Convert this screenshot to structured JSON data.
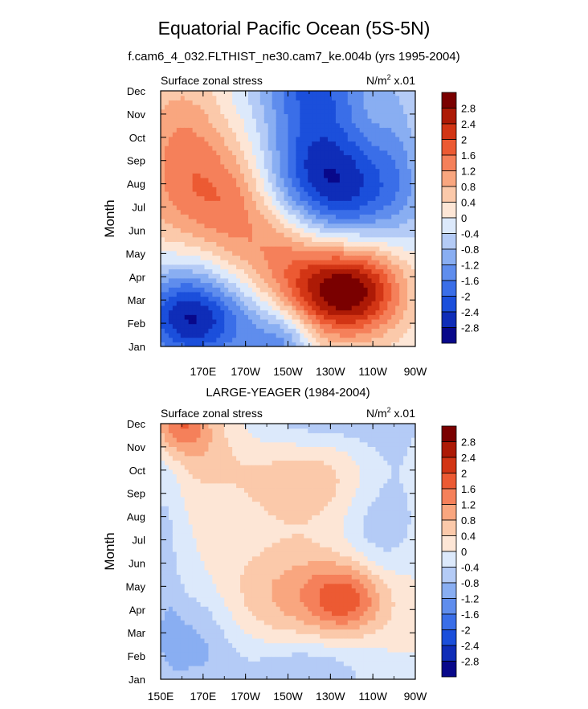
{
  "figure": {
    "title": "Equatorial Pacific Ocean (5S-5N)",
    "subtitle": "f.cam6_4_032.FLTHIST_ne30.cam7_ke.004b (yrs 1995-2004)"
  },
  "colors": {
    "levels": [
      -2.8,
      -2.4,
      -2.0,
      -1.6,
      -1.2,
      -0.8,
      -0.4,
      0,
      0.4,
      0.8,
      1.2,
      1.6,
      2.0,
      2.4,
      2.8
    ],
    "fills": [
      "#08088a",
      "#0f2db8",
      "#1b4fdb",
      "#3a6ee8",
      "#5f8ded",
      "#89aef2",
      "#b4cbf6",
      "#dce9fb",
      "#fde6d6",
      "#fbc9aa",
      "#f9a67f",
      "#f5805a",
      "#ec5a33",
      "#d23515",
      "#ad1a06",
      "#7a0000"
    ]
  },
  "chart_data": [
    {
      "type": "heatmap",
      "title": "",
      "left_string": "Surface zonal stress",
      "right_string": "N/m",
      "right_string_sup": "2",
      "right_string_tail": " x.01",
      "xlabel": "",
      "ylabel": "Month",
      "xlim": [
        150,
        270
      ],
      "xticks": [
        170,
        190,
        210,
        230,
        250,
        270
      ],
      "xticklabels": [
        "170E",
        "170W",
        "150W",
        "130W",
        "110W",
        "90W"
      ],
      "yticklabels": [
        "Jan",
        "Feb",
        "Mar",
        "Apr",
        "May",
        "Jun",
        "Jul",
        "Aug",
        "Sep",
        "Oct",
        "Nov",
        "Dec"
      ],
      "colorbar_labels": [
        "2.8",
        "2.4",
        "2",
        "1.6",
        "1.2",
        "0.8",
        "0.4",
        "0",
        "-0.4",
        "-0.8",
        "-1.2",
        "-1.6",
        "-2",
        "-2.4",
        "-2.8"
      ],
      "features": [
        {
          "lon": 170,
          "month": 1,
          "value": -2.0,
          "wlon": 22,
          "wmon": 1.3
        },
        {
          "lon": 160,
          "month": 2,
          "value": -1.2,
          "wlon": 14,
          "wmon": 1.6
        },
        {
          "lon": 208,
          "month": 0.2,
          "value": -1.2,
          "wlon": 10,
          "wmon": 1.0
        },
        {
          "lon": 160,
          "month": 7,
          "value": 1.0,
          "wlon": 16,
          "wmon": 2.6
        },
        {
          "lon": 185,
          "month": 6.3,
          "value": 1.2,
          "wlon": 14,
          "wmon": 1.8
        },
        {
          "lon": 160,
          "month": 9.5,
          "value": 0.5,
          "wlon": 14,
          "wmon": 2.5
        },
        {
          "lon": 210,
          "month": 4.4,
          "value": 1.4,
          "wlon": 16,
          "wmon": 1.5
        },
        {
          "lon": 232,
          "month": 2.2,
          "value": 2.2,
          "wlon": 20,
          "wmon": 1.3
        },
        {
          "lon": 243,
          "month": 3.1,
          "value": 1.6,
          "wlon": 16,
          "wmon": 1.6
        },
        {
          "lon": 236,
          "month": 6.5,
          "value": -2.4,
          "wlon": 24,
          "wmon": 2.0
        },
        {
          "lon": 222,
          "month": 9.5,
          "value": -1.4,
          "wlon": 17,
          "wmon": 2.4
        },
        {
          "lon": 222,
          "month": 11.3,
          "value": -0.9,
          "wlon": 22,
          "wmon": 1.0
        },
        {
          "lon": 262,
          "month": 9.5,
          "value": -0.5,
          "wlon": 8,
          "wmon": 2.5
        }
      ]
    },
    {
      "type": "heatmap",
      "title": "LARGE-YEAGER (1984-2004)",
      "left_string": "Surface zonal stress",
      "right_string": "N/m",
      "right_string_sup": "2",
      "right_string_tail": " x.01",
      "xlabel": "",
      "ylabel": "Month",
      "xlim": [
        150,
        270
      ],
      "xticks": [
        150,
        170,
        190,
        210,
        230,
        250,
        270
      ],
      "xticklabels": [
        "150E",
        "170E",
        "170W",
        "150W",
        "130W",
        "110W",
        "90W"
      ],
      "yticklabels": [
        "Jan",
        "Feb",
        "Mar",
        "Apr",
        "May",
        "Jun",
        "Jul",
        "Aug",
        "Sep",
        "Oct",
        "Nov",
        "Dec"
      ],
      "colorbar_labels": [
        "2.8",
        "2.4",
        "2",
        "1.6",
        "1.2",
        "0.8",
        "0.4",
        "0",
        "-0.4",
        "-0.8",
        "-1.2",
        "-1.6",
        "-2",
        "-2.4",
        "-2.8"
      ],
      "features": [
        {
          "lon": 158,
          "month": 11,
          "value": 1.4,
          "wlon": 9,
          "wmon": 0.9
        },
        {
          "lon": 170,
          "month": 10.3,
          "value": 0.6,
          "wlon": 12,
          "wmon": 1.5
        },
        {
          "lon": 166,
          "month": 1.6,
          "value": -0.9,
          "wlon": 14,
          "wmon": 1.8
        },
        {
          "lon": 152,
          "month": 5.5,
          "value": -0.5,
          "wlon": 6,
          "wmon": 4.5
        },
        {
          "lon": 220,
          "month": 3.7,
          "value": 1.0,
          "wlon": 28,
          "wmon": 1.5
        },
        {
          "lon": 238,
          "month": 3.5,
          "value": 1.3,
          "wlon": 12,
          "wmon": 1.0
        },
        {
          "lon": 220,
          "month": 8.5,
          "value": 0.7,
          "wlon": 26,
          "wmon": 1.4
        },
        {
          "lon": 218,
          "month": 0.4,
          "value": -0.8,
          "wlon": 22,
          "wmon": 1.0
        },
        {
          "lon": 226,
          "month": 11.2,
          "value": -0.7,
          "wlon": 26,
          "wmon": 1.0
        },
        {
          "lon": 250,
          "month": 6.3,
          "value": -0.6,
          "wlon": 14,
          "wmon": 2.0
        },
        {
          "lon": 260,
          "month": 9.5,
          "value": -0.4,
          "wlon": 12,
          "wmon": 3.0
        }
      ]
    }
  ]
}
